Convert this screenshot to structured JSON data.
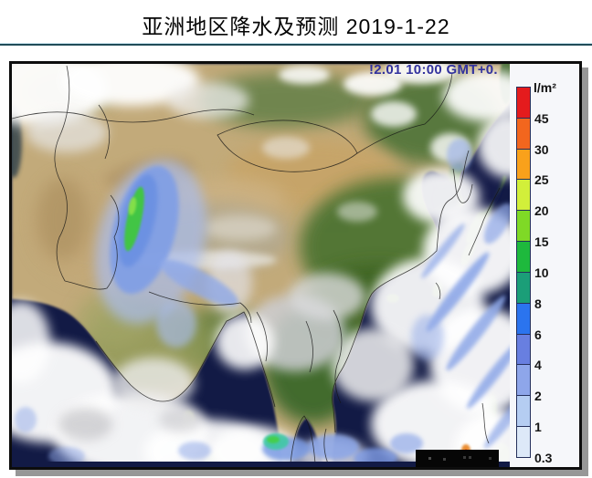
{
  "page": {
    "title": "亚洲地区降水及预测 2019-1-22"
  },
  "map": {
    "timestamp_overlay": "!2.01 10:00 GMT+0."
  },
  "legend": {
    "unit_label": "l/m²",
    "segments": [
      {
        "color": "#e41b1d",
        "tick": "45"
      },
      {
        "color": "#f2661e",
        "tick": "30"
      },
      {
        "color": "#f9a11b",
        "tick": "25"
      },
      {
        "color": "#d2ef3a",
        "tick": "20"
      },
      {
        "color": "#7fd926",
        "tick": "15"
      },
      {
        "color": "#1eb93d",
        "tick": "10"
      },
      {
        "color": "#1b9e78",
        "tick": "8"
      },
      {
        "color": "#2b74ee",
        "tick": "6"
      },
      {
        "color": "#687fe0",
        "tick": "4"
      },
      {
        "color": "#8ea6ea",
        "tick": "2"
      },
      {
        "color": "#b5cdf2",
        "tick": "1"
      },
      {
        "color": "#dde9f8",
        "tick": "0.3"
      }
    ]
  }
}
